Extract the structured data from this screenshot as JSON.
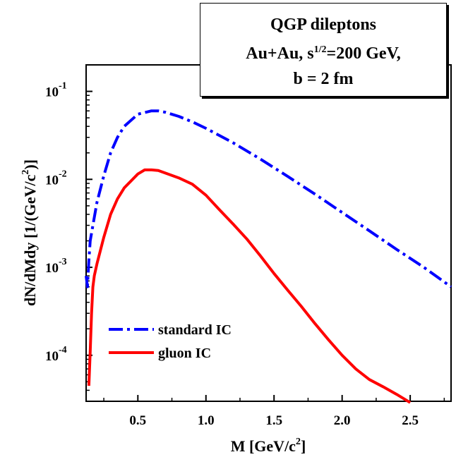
{
  "info_box": {
    "line1": "QGP dileptons",
    "line2_pre": "Au+Au,  s",
    "line2_sup": "1/2",
    "line2_post": "=200 GeV,",
    "line3": "b = 2 fm"
  },
  "chart_data": {
    "type": "line",
    "xlabel_main": "M  [GeV/c",
    "xlabel_sup": "2",
    "xlabel_end": "]",
    "ylabel_main": "dN/dMdy  [1/(GeV/c",
    "ylabel_sup": "2",
    "ylabel_end": ")]",
    "xlim": [
      0.12,
      2.8
    ],
    "ylim": [
      3e-05,
      0.2
    ],
    "yscale": "log",
    "x_ticks": [
      0.5,
      1.0,
      1.5,
      2.0,
      2.5
    ],
    "x_tick_labels": [
      "0.5",
      "1.0",
      "1.5",
      "2.0",
      "2.5"
    ],
    "y_ticks": [
      {
        "value": 0.1,
        "mantissa": "10",
        "exponent": "-1"
      },
      {
        "value": 0.01,
        "mantissa": "10",
        "exponent": "-2"
      },
      {
        "value": 0.001,
        "mantissa": "10",
        "exponent": "-3"
      },
      {
        "value": 0.0001,
        "mantissa": "10",
        "exponent": "-4"
      }
    ],
    "legend_position": "bottom-left",
    "series": [
      {
        "name": "standard IC",
        "color": "#0000ff",
        "style": "dash-dot",
        "x": [
          0.12,
          0.13,
          0.14,
          0.15,
          0.17,
          0.2,
          0.25,
          0.3,
          0.35,
          0.4,
          0.5,
          0.6,
          0.65,
          0.7,
          0.8,
          0.9,
          1.0,
          1.2,
          1.4,
          1.6,
          1.8,
          2.0,
          2.2,
          2.4,
          2.6,
          2.8
        ],
        "y": [
          0.0008,
          0.0006,
          0.0012,
          0.002,
          0.003,
          0.0055,
          0.011,
          0.02,
          0.03,
          0.04,
          0.055,
          0.06,
          0.06,
          0.058,
          0.052,
          0.045,
          0.038,
          0.026,
          0.017,
          0.0108,
          0.0068,
          0.0042,
          0.0026,
          0.0016,
          0.001,
          0.0006
        ]
      },
      {
        "name": "gluon IC",
        "color": "#ff0000",
        "style": "solid",
        "x": [
          0.14,
          0.15,
          0.16,
          0.17,
          0.18,
          0.2,
          0.25,
          0.3,
          0.35,
          0.4,
          0.5,
          0.55,
          0.6,
          0.65,
          0.7,
          0.8,
          0.9,
          1.0,
          1.1,
          1.2,
          1.3,
          1.4,
          1.5,
          1.6,
          1.7,
          1.8,
          1.9,
          2.0,
          2.1,
          2.2,
          2.3,
          2.4,
          2.5
        ],
        "y": [
          4.5e-05,
          0.00011,
          0.0003,
          0.0006,
          0.0008,
          0.0011,
          0.0022,
          0.004,
          0.006,
          0.008,
          0.0115,
          0.0128,
          0.0128,
          0.0126,
          0.0118,
          0.0104,
          0.0088,
          0.0066,
          0.0045,
          0.0031,
          0.0021,
          0.00135,
          0.00085,
          0.00055,
          0.00036,
          0.00023,
          0.00015,
          0.0001,
          7e-05,
          5.3e-05,
          4.4e-05,
          3.6e-05,
          2.9e-05
        ]
      }
    ]
  }
}
